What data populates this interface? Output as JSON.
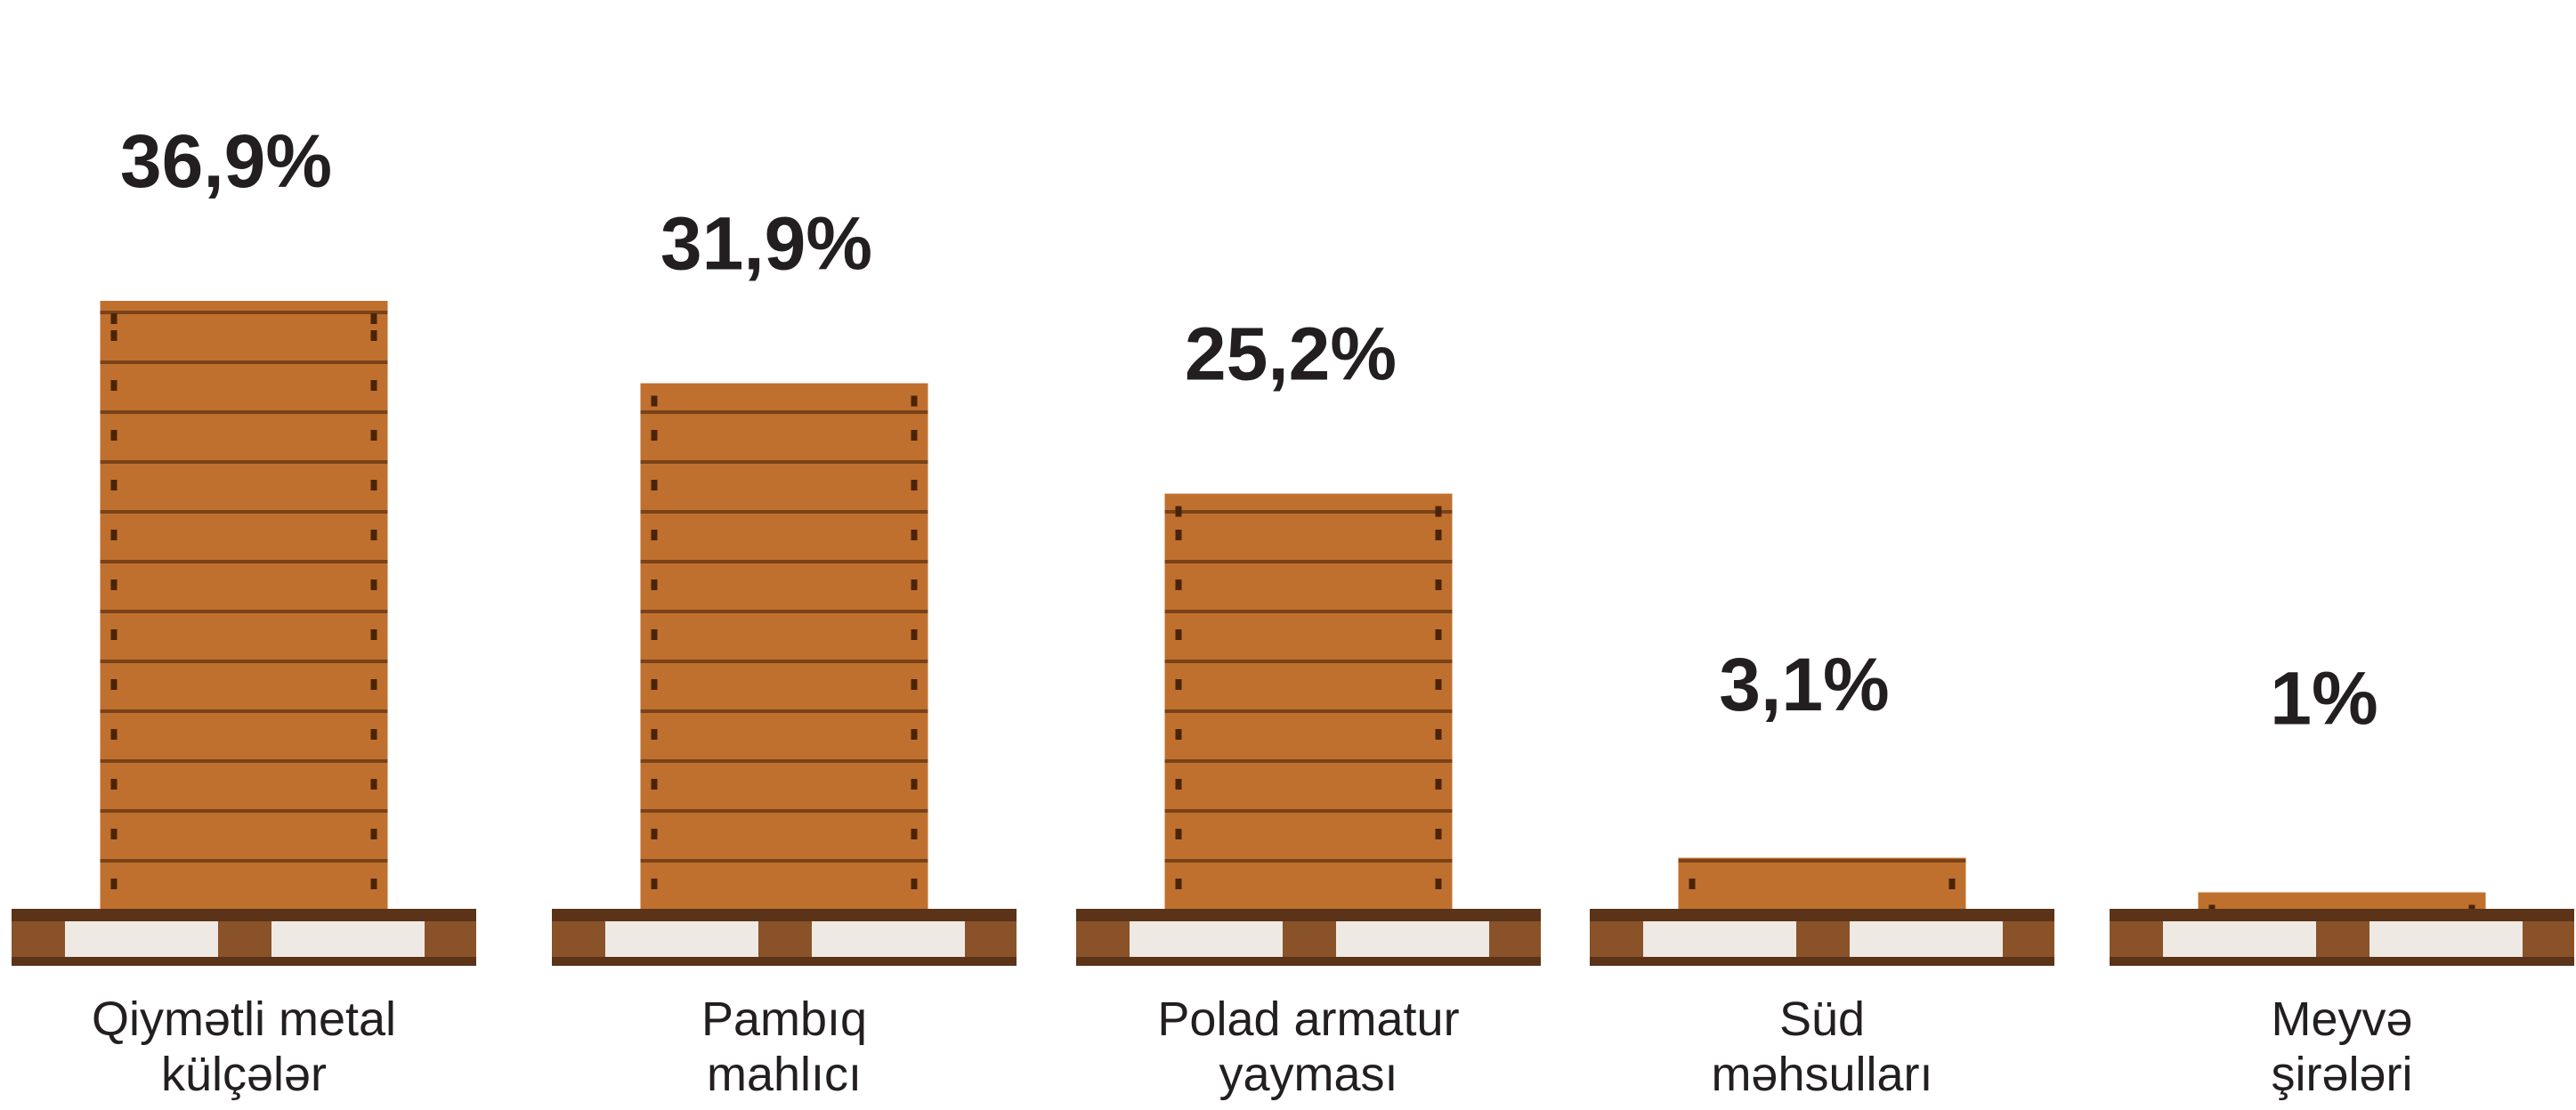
{
  "chart_data": {
    "type": "bar",
    "categories": [
      [
        "Qiymətli metal",
        "külçələr"
      ],
      [
        "Pambıq",
        "mahlıcı"
      ],
      [
        "Polad armatur",
        "yayması"
      ],
      [
        "Süd",
        "məhsulları"
      ],
      [
        "Meyvə",
        "şirələri"
      ]
    ],
    "values": [
      36.9,
      31.9,
      25.2,
      3.1,
      1
    ],
    "value_labels": [
      "36,9%",
      "31,9%",
      "25,2%",
      "3,1%",
      "1%"
    ],
    "color": "#c0702e"
  }
}
